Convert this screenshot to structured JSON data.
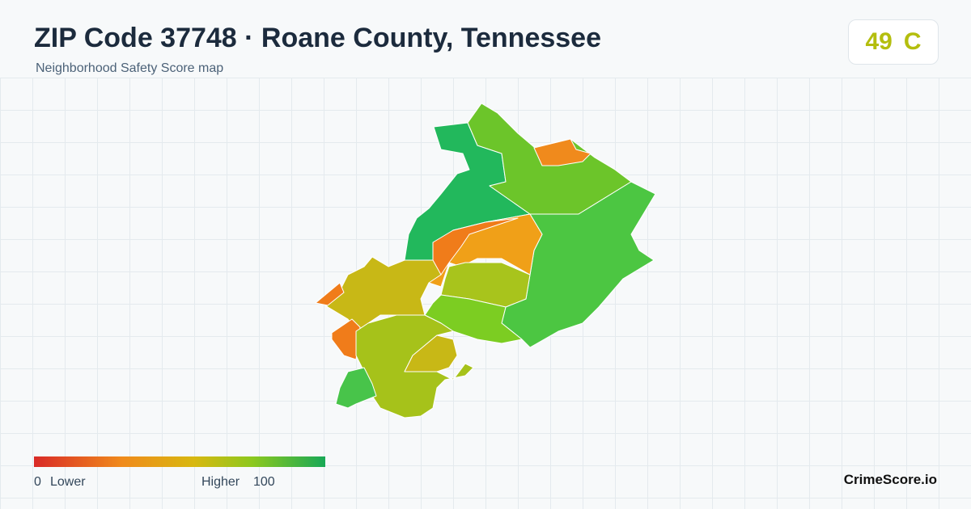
{
  "header": {
    "title": "ZIP Code 37748 · Roane County, Tennessee",
    "subtitle": "Neighborhood Safety Score map"
  },
  "score": {
    "value": 49,
    "grade": "C"
  },
  "legend": {
    "min": 0,
    "min_label": "Lower",
    "max_label": "Higher",
    "max": 100
  },
  "footer": {
    "brand": "CrimeScore.io"
  }
}
